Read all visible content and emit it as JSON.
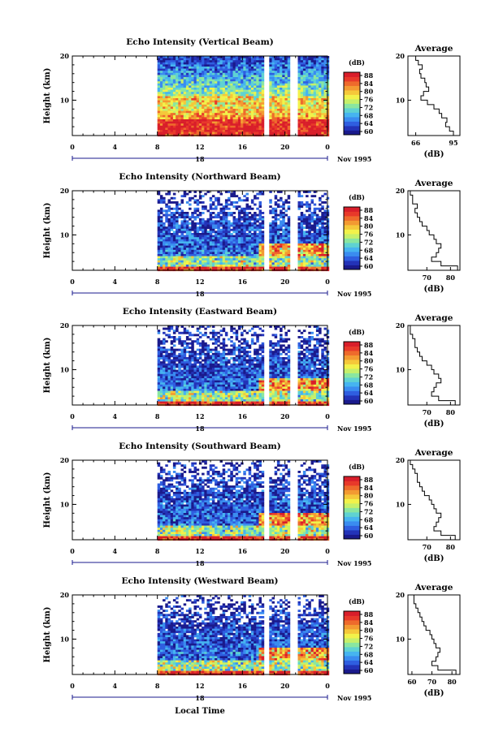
{
  "colorbar": {
    "unit": "(dB)",
    "tick_labels": [
      "88",
      "84",
      "80",
      "76",
      "72",
      "68",
      "64",
      "60"
    ],
    "colors": [
      "#1a1a8c",
      "#2333b8",
      "#2f5ee0",
      "#3a8cf0",
      "#46b4f0",
      "#5fd2d2",
      "#8ae6a0",
      "#c6f06a",
      "#f2f24a",
      "#f5c83a",
      "#f39a32",
      "#ee6a2c",
      "#e8392a",
      "#d91e2a"
    ]
  },
  "x_axis": {
    "tick_labels": [
      "0",
      "4",
      "8",
      "12",
      "16",
      "20",
      "0"
    ],
    "date_label": "18",
    "month_year": "Nov 1995",
    "label": "Local Time"
  },
  "profile_label": "(dB)",
  "avg_title": "Average",
  "chart_data": [
    {
      "type": "heatmap",
      "title": "Echo Intensity (Vertical Beam)",
      "ylabel": "Height (km)",
      "xlabel": "Local Time",
      "y_ticks": [
        "20",
        "10"
      ],
      "ylim": [
        2,
        20
      ],
      "xlim": [
        0,
        24
      ],
      "data_start_hour": 8,
      "gaps_hours": [
        [
          17.9,
          18.3
        ],
        [
          20.3,
          21.2
        ]
      ],
      "profile": {
        "title": "Average",
        "xlabel": "(dB)",
        "x_ticks": [
          "66",
          "95"
        ],
        "xlim": [
          60,
          100
        ],
        "heights_km": [
          2,
          3,
          4,
          5,
          6,
          7,
          8,
          9,
          10,
          11,
          12,
          13,
          14,
          15,
          16,
          17,
          18,
          19,
          20
        ],
        "values_db": [
          95,
          92,
          89,
          90,
          86,
          84,
          80,
          75,
          70,
          72,
          76,
          74,
          73,
          70,
          69,
          71,
          68,
          66,
          67
        ]
      }
    },
    {
      "type": "heatmap",
      "title": "Echo Intensity (Northward Beam)",
      "ylabel": "Height (km)",
      "xlabel": "Local Time",
      "y_ticks": [
        "20",
        "10"
      ],
      "ylim": [
        2,
        20
      ],
      "xlim": [
        0,
        24
      ],
      "data_start_hour": 8,
      "gaps_hours": [
        [
          17.9,
          18.3
        ],
        [
          20.3,
          21.2
        ]
      ],
      "profile": {
        "title": "Average",
        "xlabel": "(dB)",
        "x_ticks": [
          "70",
          "80"
        ],
        "xlim": [
          62,
          84
        ],
        "heights_km": [
          2,
          3,
          4,
          5,
          6,
          7,
          8,
          9,
          10,
          11,
          12,
          13,
          14,
          15,
          16,
          17,
          18,
          19,
          20
        ],
        "values_db": [
          83,
          76,
          72,
          74,
          75,
          76,
          74,
          73,
          71,
          70,
          68,
          67,
          66,
          65,
          66,
          64,
          64,
          63,
          64
        ]
      }
    },
    {
      "type": "heatmap",
      "title": "Echo Intensity (Eastward Beam)",
      "ylabel": "Height (km)",
      "xlabel": "Local Time",
      "y_ticks": [
        "20",
        "10"
      ],
      "ylim": [
        2,
        20
      ],
      "xlim": [
        0,
        24
      ],
      "data_start_hour": 8,
      "gaps_hours": [
        [
          17.9,
          18.3
        ],
        [
          20.3,
          21.2
        ]
      ],
      "profile": {
        "title": "Average",
        "xlabel": "(dB)",
        "x_ticks": [
          "70",
          "80"
        ],
        "xlim": [
          62,
          84
        ],
        "heights_km": [
          2,
          3,
          4,
          5,
          6,
          7,
          8,
          9,
          10,
          11,
          12,
          13,
          14,
          15,
          16,
          17,
          18,
          19,
          20
        ],
        "values_db": [
          82,
          75,
          72,
          73,
          74,
          76,
          75,
          73,
          72,
          70,
          68,
          67,
          66,
          65,
          65,
          64,
          63,
          63,
          64
        ]
      }
    },
    {
      "type": "heatmap",
      "title": "Echo Intensity (Southward Beam)",
      "ylabel": "Height (km)",
      "xlabel": "Local Time",
      "y_ticks": [
        "20",
        "10"
      ],
      "ylim": [
        2,
        20
      ],
      "xlim": [
        0,
        24
      ],
      "data_start_hour": 8,
      "gaps_hours": [
        [
          17.9,
          18.3
        ],
        [
          20.3,
          21.2
        ]
      ],
      "profile": {
        "title": "Average",
        "xlabel": "(dB)",
        "x_ticks": [
          "70",
          "80"
        ],
        "xlim": [
          62,
          84
        ],
        "heights_km": [
          2,
          3,
          4,
          5,
          6,
          7,
          8,
          9,
          10,
          11,
          12,
          13,
          14,
          15,
          16,
          17,
          18,
          19,
          20
        ],
        "values_db": [
          82,
          76,
          73,
          74,
          75,
          76,
          74,
          73,
          72,
          71,
          69,
          68,
          67,
          66,
          66,
          65,
          64,
          63,
          64
        ]
      }
    },
    {
      "type": "heatmap",
      "title": "Echo Intensity (Westward Beam)",
      "ylabel": "Height (km)",
      "xlabel": "Local Time",
      "y_ticks": [
        "20",
        "10"
      ],
      "ylim": [
        2,
        20
      ],
      "xlim": [
        0,
        24
      ],
      "data_start_hour": 8,
      "gaps_hours": [
        [
          17.9,
          18.3
        ],
        [
          20.3,
          21.2
        ]
      ],
      "profile": {
        "title": "Average",
        "xlabel": "(dB)",
        "x_ticks": [
          "60",
          "70",
          "80"
        ],
        "xlim": [
          58,
          84
        ],
        "heights_km": [
          2,
          3,
          4,
          5,
          6,
          7,
          8,
          9,
          10,
          11,
          12,
          13,
          14,
          15,
          16,
          17,
          18,
          19,
          20
        ],
        "values_db": [
          82,
          73,
          70,
          72,
          73,
          74,
          72,
          71,
          70,
          69,
          67,
          66,
          65,
          64,
          63,
          62,
          61,
          61,
          62
        ]
      }
    }
  ]
}
